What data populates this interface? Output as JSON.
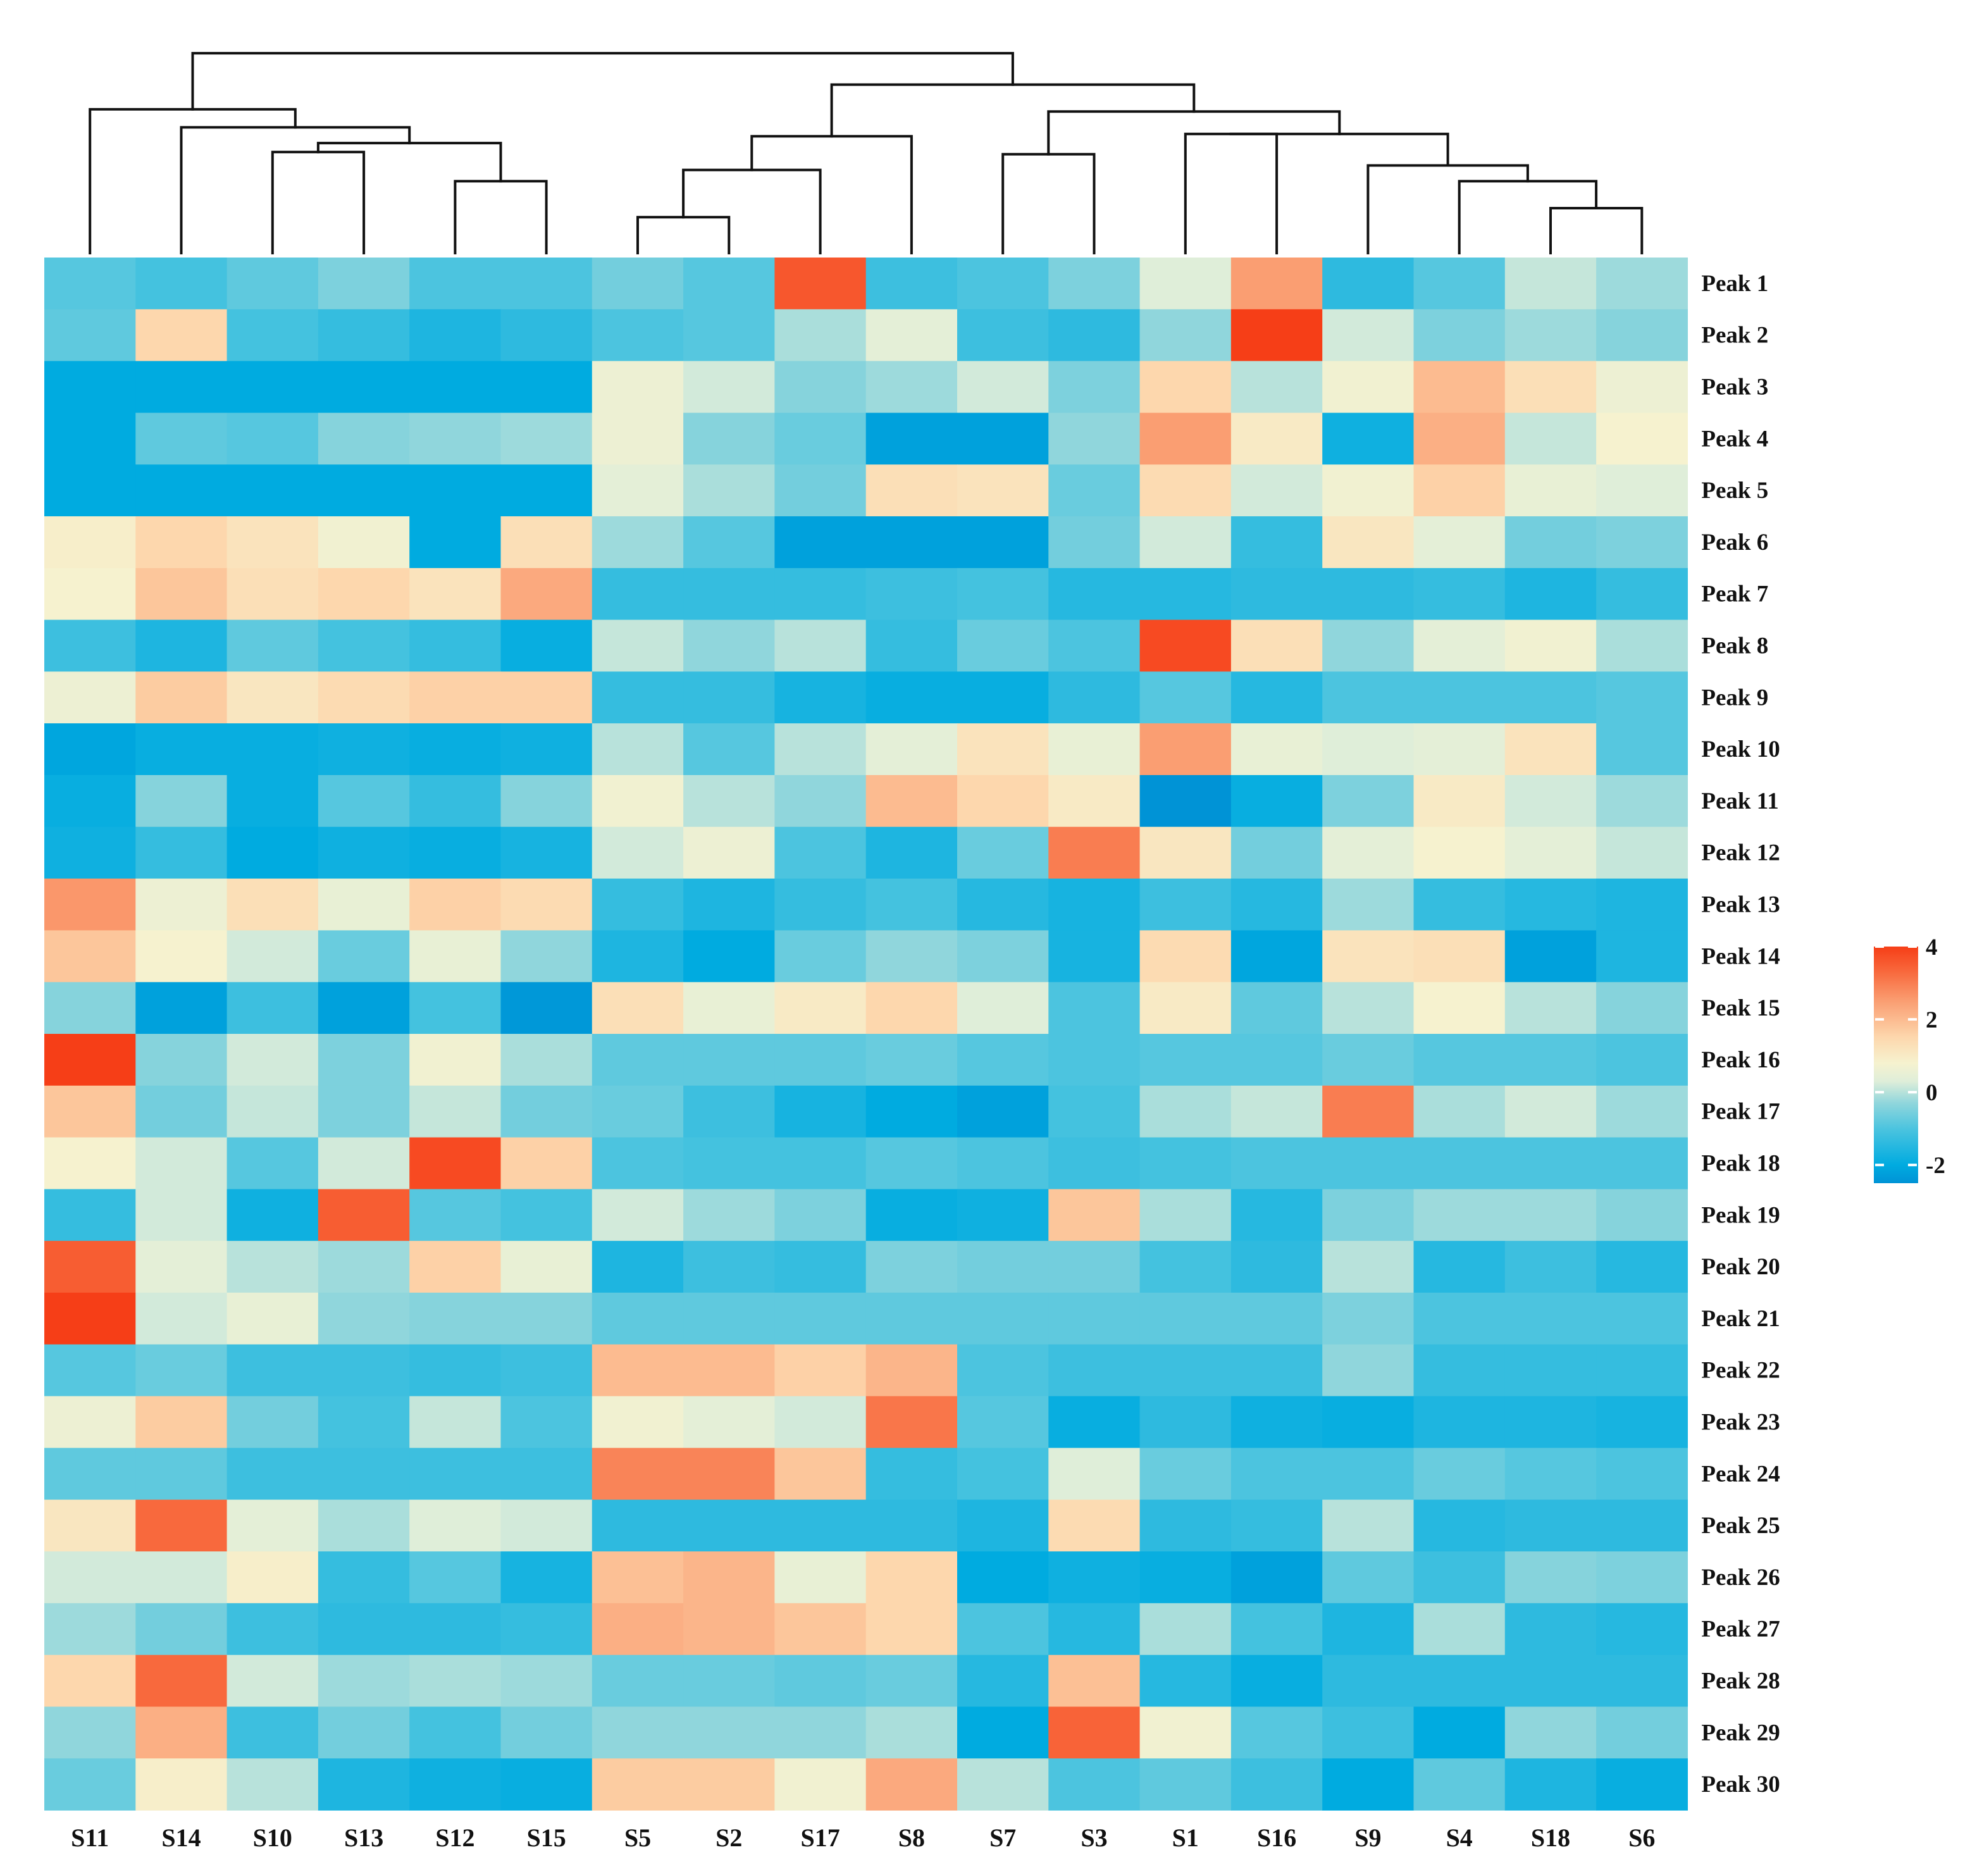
{
  "chart_data": {
    "type": "heatmap",
    "title": "",
    "columns": [
      "S11",
      "S14",
      "S10",
      "S13",
      "S12",
      "S15",
      "S5",
      "S2",
      "S17",
      "S8",
      "S7",
      "S3",
      "S1",
      "S16",
      "S9",
      "S4",
      "S18",
      "S6"
    ],
    "rows": [
      "Peak 1",
      "Peak 2",
      "Peak 3",
      "Peak 4",
      "Peak 5",
      "Peak 6",
      "Peak 7",
      "Peak 8",
      "Peak 9",
      "Peak 10",
      "Peak 11",
      "Peak 12",
      "Peak 13",
      "Peak 14",
      "Peak 15",
      "Peak 16",
      "Peak 17",
      "Peak 18",
      "Peak 19",
      "Peak 20",
      "Peak 21",
      "Peak 22",
      "Peak 23",
      "Peak 24",
      "Peak 25",
      "Peak 26",
      "Peak 27",
      "Peak 28",
      "Peak 29",
      "Peak 30"
    ],
    "values": [
      [
        -0.9,
        -1.1,
        -0.8,
        -0.5,
        -1.0,
        -1.0,
        -0.6,
        -0.9,
        3.6,
        -1.2,
        -1.0,
        -0.5,
        0.3,
        2.5,
        -1.4,
        -0.9,
        0.1,
        -0.2
      ],
      [
        -0.8,
        1.5,
        -1.1,
        -1.3,
        -1.6,
        -1.4,
        -1.0,
        -0.9,
        -0.1,
        0.4,
        -1.2,
        -1.4,
        -0.3,
        4.0,
        0.2,
        -0.5,
        -0.2,
        -0.4
      ],
      [
        -2.0,
        -2.0,
        -2.0,
        -2.0,
        -2.0,
        -2.0,
        0.6,
        0.2,
        -0.4,
        -0.2,
        0.2,
        -0.5,
        1.5,
        0.0,
        0.7,
        2.0,
        1.3,
        0.6
      ],
      [
        -2.0,
        -0.8,
        -0.9,
        -0.4,
        -0.3,
        -0.2,
        0.6,
        -0.4,
        -0.7,
        -2.2,
        -2.2,
        -0.3,
        2.5,
        1.0,
        -1.8,
        2.2,
        0.1,
        0.8
      ],
      [
        -2.0,
        -2.0,
        -2.0,
        -2.0,
        -2.0,
        -2.0,
        0.4,
        -0.1,
        -0.6,
        1.3,
        1.2,
        -0.7,
        1.4,
        0.2,
        0.7,
        1.6,
        0.5,
        0.3
      ],
      [
        0.9,
        1.5,
        1.2,
        0.7,
        -2.0,
        1.3,
        -0.2,
        -0.9,
        -2.2,
        -2.2,
        -2.2,
        -0.6,
        0.2,
        -1.3,
        1.1,
        0.4,
        -0.6,
        -0.5
      ],
      [
        0.8,
        1.8,
        1.3,
        1.5,
        1.2,
        2.3,
        -1.3,
        -1.3,
        -1.3,
        -1.2,
        -1.1,
        -1.5,
        -1.5,
        -1.4,
        -1.4,
        -1.3,
        -1.6,
        -1.3
      ],
      [
        -1.2,
        -1.6,
        -0.8,
        -1.1,
        -1.3,
        -1.9,
        0.1,
        -0.3,
        0.0,
        -1.3,
        -0.7,
        -1.0,
        3.8,
        1.3,
        -0.3,
        0.4,
        0.7,
        -0.1
      ],
      [
        0.6,
        1.7,
        1.1,
        1.4,
        1.6,
        1.6,
        -1.3,
        -1.3,
        -1.7,
        -1.9,
        -1.9,
        -1.4,
        -0.9,
        -1.5,
        -1.0,
        -1.0,
        -1.0,
        -0.9
      ],
      [
        -2.1,
        -1.9,
        -1.9,
        -1.8,
        -1.9,
        -1.8,
        0.0,
        -0.9,
        0.0,
        0.4,
        1.2,
        0.5,
        2.5,
        0.5,
        0.3,
        0.4,
        1.2,
        -0.9
      ],
      [
        -1.9,
        -0.4,
        -1.9,
        -0.9,
        -1.3,
        -0.4,
        0.7,
        0.0,
        -0.3,
        2.0,
        1.5,
        1.0,
        -2.5,
        -1.9,
        -0.5,
        1.0,
        0.2,
        -0.2
      ],
      [
        -1.8,
        -1.3,
        -2.0,
        -1.8,
        -1.9,
        -1.7,
        0.2,
        0.6,
        -1.0,
        -1.6,
        -0.7,
        3.0,
        1.1,
        -0.6,
        0.4,
        0.8,
        0.4,
        0.1
      ],
      [
        2.6,
        0.6,
        1.3,
        0.5,
        1.6,
        1.4,
        -1.3,
        -1.6,
        -1.3,
        -1.1,
        -1.5,
        -1.7,
        -1.2,
        -1.5,
        -0.2,
        -1.3,
        -1.5,
        -1.6
      ],
      [
        1.8,
        0.8,
        0.2,
        -0.7,
        0.5,
        -0.3,
        -1.6,
        -2.0,
        -0.7,
        -0.3,
        -0.5,
        -1.7,
        1.4,
        -2.1,
        1.2,
        1.3,
        -2.2,
        -1.6
      ],
      [
        -0.4,
        -2.2,
        -1.2,
        -2.2,
        -1.1,
        -2.4,
        1.3,
        0.5,
        1.0,
        1.5,
        0.3,
        -1.0,
        1.0,
        -0.8,
        0.0,
        0.8,
        0.0,
        -0.4
      ],
      [
        4.0,
        -0.4,
        0.2,
        -0.5,
        0.7,
        -0.1,
        -0.8,
        -0.8,
        -0.8,
        -0.7,
        -0.9,
        -1.0,
        -0.9,
        -0.9,
        -0.7,
        -0.9,
        -0.9,
        -1.0
      ],
      [
        1.8,
        -0.6,
        0.1,
        -0.5,
        0.1,
        -0.6,
        -0.7,
        -1.2,
        -1.7,
        -2.0,
        -2.2,
        -1.1,
        -0.1,
        0.1,
        3.0,
        -0.1,
        0.2,
        -0.2
      ],
      [
        0.8,
        0.2,
        -0.9,
        0.2,
        3.8,
        1.6,
        -1.0,
        -1.1,
        -1.1,
        -0.9,
        -1.0,
        -1.2,
        -1.1,
        -1.0,
        -1.0,
        -1.0,
        -1.0,
        -1.0
      ],
      [
        -1.3,
        0.2,
        -1.8,
        3.5,
        -0.9,
        -1.1,
        0.2,
        -0.2,
        -0.5,
        -1.9,
        -1.8,
        1.8,
        -0.1,
        -1.5,
        -0.5,
        -0.2,
        -0.2,
        -0.4
      ],
      [
        3.5,
        0.4,
        0.0,
        -0.2,
        1.6,
        0.5,
        -1.6,
        -1.2,
        -1.3,
        -0.5,
        -0.6,
        -0.6,
        -1.1,
        -1.4,
        0.0,
        -1.5,
        -1.2,
        -1.5
      ],
      [
        4.0,
        0.2,
        0.5,
        -0.3,
        -0.4,
        -0.4,
        -0.8,
        -0.8,
        -0.8,
        -0.8,
        -0.8,
        -0.8,
        -0.8,
        -0.8,
        -0.5,
        -1.0,
        -1.0,
        -1.0
      ],
      [
        -0.9,
        -0.7,
        -1.2,
        -1.2,
        -1.3,
        -1.2,
        2.0,
        2.0,
        1.6,
        2.1,
        -1.0,
        -1.2,
        -1.2,
        -1.2,
        -0.3,
        -1.3,
        -1.3,
        -1.3
      ],
      [
        0.6,
        1.7,
        -0.6,
        -1.1,
        0.1,
        -1.0,
        0.7,
        0.4,
        0.2,
        3.1,
        -0.9,
        -1.9,
        -1.4,
        -1.8,
        -1.9,
        -1.6,
        -1.6,
        -1.7
      ],
      [
        -0.8,
        -0.8,
        -1.2,
        -1.2,
        -1.2,
        -1.2,
        2.9,
        2.9,
        1.8,
        -1.3,
        -1.1,
        0.3,
        -0.7,
        -1.0,
        -1.0,
        -0.7,
        -0.9,
        -1.0
      ],
      [
        1.1,
        3.3,
        0.4,
        -0.1,
        0.3,
        0.2,
        -1.4,
        -1.4,
        -1.4,
        -1.4,
        -1.6,
        1.4,
        -1.4,
        -1.3,
        0.0,
        -1.5,
        -1.4,
        -1.4
      ],
      [
        0.2,
        0.2,
        0.9,
        -1.3,
        -0.9,
        -1.7,
        1.9,
        2.1,
        0.5,
        1.5,
        -2.0,
        -1.8,
        -1.9,
        -2.2,
        -0.8,
        -1.2,
        -0.4,
        -0.5
      ],
      [
        -0.2,
        -0.6,
        -1.2,
        -1.4,
        -1.4,
        -1.3,
        2.2,
        2.1,
        1.8,
        1.5,
        -1.0,
        -1.5,
        -0.1,
        -1.1,
        -1.6,
        -0.1,
        -1.4,
        -1.5
      ],
      [
        1.5,
        3.3,
        0.2,
        -0.2,
        -0.1,
        -0.2,
        -0.7,
        -0.7,
        -0.8,
        -0.7,
        -1.5,
        1.9,
        -1.5,
        -1.9,
        -1.4,
        -1.4,
        -1.4,
        -1.4
      ],
      [
        -0.3,
        2.2,
        -1.2,
        -0.6,
        -1.1,
        -0.6,
        -0.3,
        -0.3,
        -0.3,
        -0.1,
        -2.0,
        3.4,
        0.7,
        -0.9,
        -1.2,
        -2.0,
        -0.3,
        -0.6
      ],
      [
        -0.7,
        0.9,
        0.0,
        -1.6,
        -1.8,
        -1.9,
        1.7,
        1.7,
        0.7,
        2.3,
        0.0,
        -1.0,
        -0.8,
        -1.2,
        -2.0,
        -0.8,
        -1.6,
        -1.9
      ]
    ],
    "color_scale": {
      "min": -2.5,
      "max": 4,
      "stops": [
        {
          "v": -2.5,
          "c": "#0093d6"
        },
        {
          "v": -2.0,
          "c": "#00abe0"
        },
        {
          "v": -1.0,
          "c": "#4cc4df"
        },
        {
          "v": -0.3,
          "c": "#90d6dc"
        },
        {
          "v": 0.3,
          "c": "#dfeed9"
        },
        {
          "v": 0.8,
          "c": "#f6f2cf"
        },
        {
          "v": 1.5,
          "c": "#fdd7ad"
        },
        {
          "v": 2.5,
          "c": "#fa9e72"
        },
        {
          "v": 3.3,
          "c": "#f8693d"
        },
        {
          "v": 4.0,
          "c": "#f63e17"
        }
      ]
    },
    "legend": {
      "ticks": [
        4,
        2,
        0,
        -2
      ],
      "placement": "right"
    },
    "dendrogram": {
      "leaf_order": [
        "S11",
        "S14",
        "S10",
        "S13",
        "S12",
        "S15",
        "S5",
        "S2",
        "S17",
        "S8",
        "S7",
        "S3",
        "S1",
        "S16",
        "S9",
        "S4",
        "S18",
        "S6"
      ],
      "merges": [
        [
          2,
          3,
          0.45
        ],
        [
          4,
          5,
          0.32
        ],
        [
          18,
          19,
          0.49
        ],
        [
          1,
          20,
          0.56
        ],
        [
          0,
          21,
          0.64
        ],
        [
          6,
          7,
          0.16
        ],
        [
          23,
          8,
          0.37
        ],
        [
          24,
          9,
          0.52
        ],
        [
          10,
          11,
          0.44
        ],
        [
          16,
          17,
          0.2
        ],
        [
          15,
          27,
          0.32
        ],
        [
          14,
          28,
          0.39
        ],
        [
          12,
          13,
          0.53
        ],
        [
          30,
          29,
          0.53
        ],
        [
          31,
          26,
          0.63
        ],
        [
          25,
          32,
          0.75
        ],
        [
          22,
          33,
          0.89
        ]
      ]
    }
  }
}
